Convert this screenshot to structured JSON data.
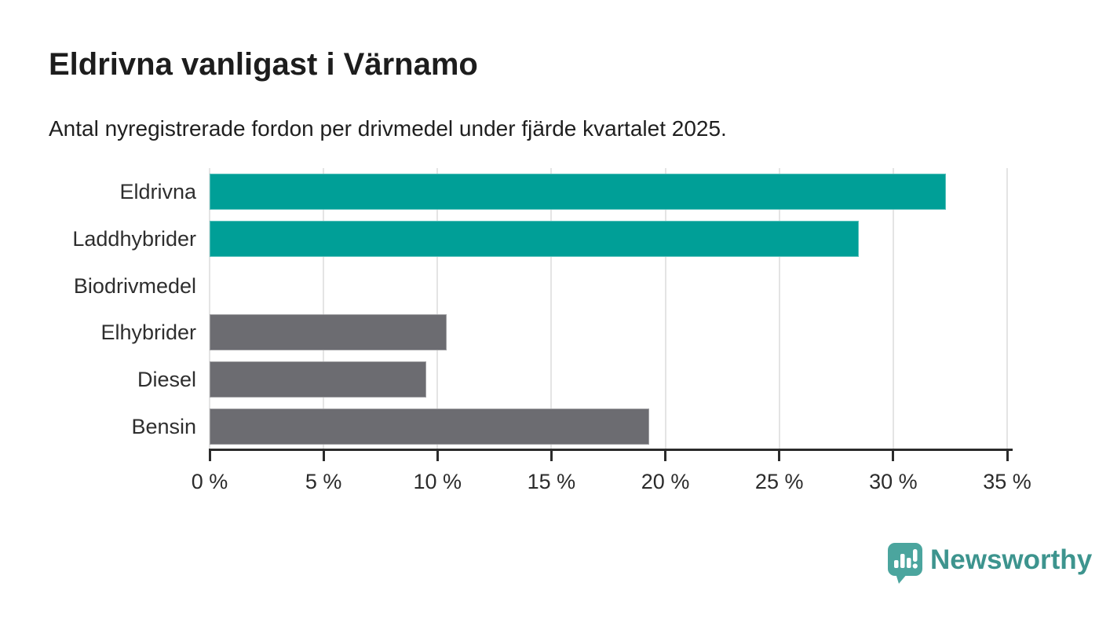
{
  "chart_data": {
    "type": "bar",
    "orientation": "horizontal",
    "title": "Eldrivna vanligast i Värnamo",
    "subtitle": "Antal nyregistrerade fordon per drivmedel under fjärde kvartalet 2025.",
    "categories": [
      "Eldrivna",
      "Laddhybrider",
      "Biodrivmedel",
      "Elhybrider",
      "Diesel",
      "Bensin"
    ],
    "values": [
      32.3,
      28.5,
      0,
      10.4,
      9.5,
      19.3
    ],
    "unit": "%",
    "bar_colors": [
      "#009f97",
      "#009f97",
      "#6c6c71",
      "#6c6c71",
      "#6c6c71",
      "#6c6c71"
    ],
    "colors": {
      "highlight": "#009f97",
      "default": "#6c6c71",
      "gridline": "#e4e4e4",
      "axis": "#2b2b2b"
    },
    "xlim": [
      0,
      35
    ],
    "xticks": [
      0,
      5,
      10,
      15,
      20,
      25,
      30,
      35
    ],
    "xtick_label_format": "{v} %",
    "xtick_labels": [
      "0 %",
      "5 %",
      "10 %",
      "15 %",
      "20 %",
      "25 %",
      "30 %",
      "35 %"
    ],
    "grid": "vertical",
    "legend": "none",
    "xlabel": "",
    "ylabel": ""
  },
  "footer": {
    "brand": "Newsworthy",
    "logo_icon": "newsworthy-speech-bubble-bar-chart-icon",
    "icon_color": "#4ba59e",
    "brand_color": "#3d948e"
  }
}
